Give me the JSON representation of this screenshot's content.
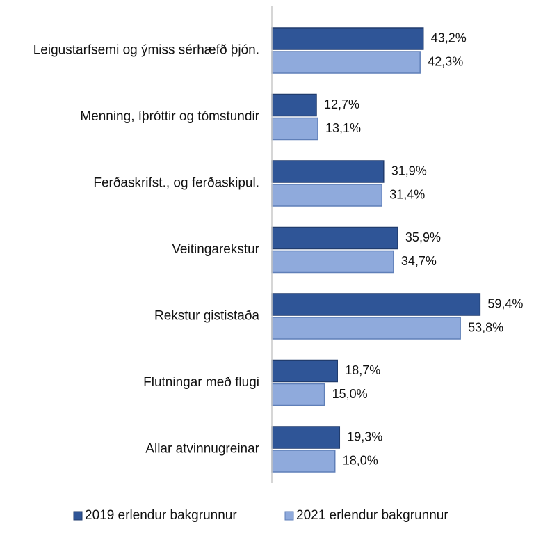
{
  "chart_data": {
    "type": "bar",
    "orientation": "horizontal",
    "title": "",
    "xlabel": "",
    "ylabel": "",
    "xlim": [
      0,
      70
    ],
    "grid": false,
    "legend_position": "bottom",
    "categories": [
      "Leigustarfsemi og ýmiss sérhæfð þjón.",
      "Menning, íþróttir og tómstundir",
      "Ferðaskrifst., og ferðaskipul.",
      "Veitingarekstur",
      "Rekstur gististaða",
      "Flutningar með flugi",
      "Allar atvinnugreinar"
    ],
    "series": [
      {
        "name": "2019 erlendur bakgrunnur",
        "color": "#2f5597",
        "stroke": "#203c6e",
        "values": [
          43.2,
          12.7,
          31.9,
          35.9,
          59.4,
          18.7,
          19.3
        ],
        "labels": [
          "43,2%",
          "12,7%",
          "31,9%",
          "35,9%",
          "59,4%",
          "18,7%",
          "19,3%"
        ]
      },
      {
        "name": "2021 erlendur bakgrunnur",
        "color": "#8faadc",
        "stroke": "#5f7fb8",
        "values": [
          42.3,
          13.1,
          31.4,
          34.7,
          53.8,
          15.0,
          18.0
        ],
        "labels": [
          "42,3%",
          "13,1%",
          "31,4%",
          "34,7%",
          "53,8%",
          "15,0%",
          "18,0%"
        ]
      }
    ]
  }
}
